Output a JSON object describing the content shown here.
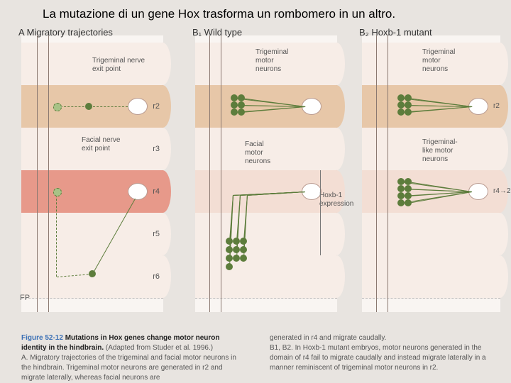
{
  "title": "La mutazione di un gene Hox trasforma un rombomero in un altro.",
  "fig_number": "Figure 52-12",
  "fig_title": "Mutations in Hox genes change motor neuron identity in the hindbrain.",
  "fig_source": "(Adapted from Studer et al. 1996.)",
  "fig_A": "A. Migratory trajectories of the trigeminal and facial motor neurons in the hindbrain. Trigeminal motor neurons are generated in r2 and migrate laterally, whereas facial neurons are",
  "fig_A_cont": "generated in r4 and migrate caudally.",
  "fig_B": "B1, B2. In Hoxb-1 mutant embryos, motor neurons generated in the domain of r4 fail to migrate caudally and instead migrate laterally in a manner reminiscent of trigeminal motor neurons in r2.",
  "panels": {
    "A": {
      "label": "A  Migratory trajectories",
      "callouts": {
        "trigeminal_exit": "Trigeminal nerve\nexit point",
        "facial_exit": "Facial nerve\nexit point"
      },
      "fp": "FP"
    },
    "B1": {
      "label": "B₁  Wild type",
      "callouts": {
        "trigeminal_mn": "Trigeminal\nmotor\nneurons",
        "facial_mn": "Facial\nmotor\nneurons",
        "hoxb1": "Hoxb-1\nexpression"
      }
    },
    "B2": {
      "label": "B₂  Hoxb-1 mutant",
      "callouts": {
        "trigeminal_mn": "Trigeminal\nmotor\nneurons",
        "trigem_like": "Trigeminal-\nlike motor\nneurons"
      }
    }
  },
  "seg_labels": [
    "",
    "r2",
    "r3",
    "r4",
    "r5",
    "r6"
  ],
  "colors": {
    "body_bg": "#e8e4e0",
    "tissue": "#f3ded4",
    "tissue_neutral": "#f7ede7",
    "tissue_r2": "#e7c7a8",
    "tissue_r4_band": "#e7998a",
    "neuron_green": "#5d7d3c",
    "neuron_light": "#a8c286",
    "outline": "#bfa8a0"
  },
  "seg_height": 60
}
